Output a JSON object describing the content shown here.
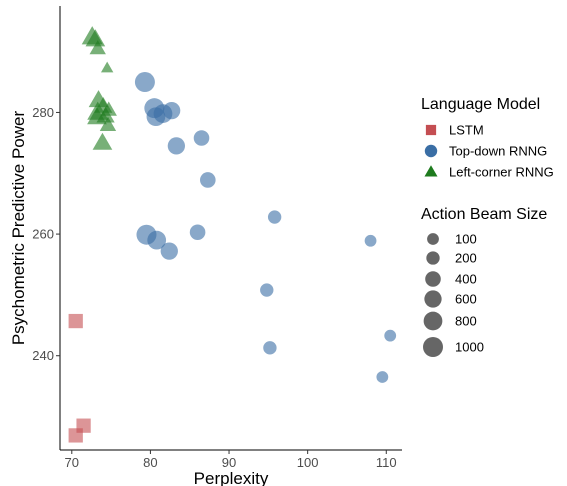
{
  "chart_data": {
    "type": "scatter",
    "xlabel": "Perplexity",
    "ylabel": "Psychometric Predictive Power",
    "xlim": [
      68.5,
      112
    ],
    "ylim": [
      224.5,
      297.5
    ],
    "xticks": [
      70,
      80,
      90,
      100,
      110
    ],
    "yticks": [
      240,
      260,
      280
    ],
    "grid": false,
    "legend_position": "right",
    "color_legend": {
      "title": "Language Model",
      "entries": [
        {
          "name": "LSTM",
          "shape": "square",
          "color": "#c44e52"
        },
        {
          "name": "Top-down RNNG",
          "shape": "circle",
          "color": "#3a6ea5"
        },
        {
          "name": "Left-corner RNNG",
          "shape": "triangle",
          "color": "#1e7b1e"
        }
      ]
    },
    "size_legend": {
      "title": "Action Beam Size",
      "entries": [
        100,
        200,
        400,
        600,
        800,
        1000
      ]
    },
    "series": [
      {
        "name": "LSTM",
        "points": [
          {
            "x": 70.5,
            "y": 245.7,
            "size": 600
          },
          {
            "x": 71.5,
            "y": 228.5,
            "size": 600
          },
          {
            "x": 70.5,
            "y": 226.9,
            "size": 600
          }
        ]
      },
      {
        "name": "Top-down RNNG",
        "points": [
          {
            "x": 79.3,
            "y": 285.0,
            "size": 1000
          },
          {
            "x": 80.5,
            "y": 280.7,
            "size": 1000
          },
          {
            "x": 80.7,
            "y": 279.3,
            "size": 800
          },
          {
            "x": 81.6,
            "y": 279.8,
            "size": 800
          },
          {
            "x": 82.7,
            "y": 280.3,
            "size": 600
          },
          {
            "x": 83.3,
            "y": 274.5,
            "size": 600
          },
          {
            "x": 86.5,
            "y": 275.8,
            "size": 400
          },
          {
            "x": 87.3,
            "y": 268.9,
            "size": 400
          },
          {
            "x": 79.5,
            "y": 259.9,
            "size": 1000
          },
          {
            "x": 80.8,
            "y": 259.0,
            "size": 800
          },
          {
            "x": 82.4,
            "y": 257.2,
            "size": 600
          },
          {
            "x": 86.0,
            "y": 260.3,
            "size": 400
          },
          {
            "x": 95.8,
            "y": 262.8,
            "size": 200
          },
          {
            "x": 108.0,
            "y": 258.9,
            "size": 100
          },
          {
            "x": 94.8,
            "y": 250.8,
            "size": 200
          },
          {
            "x": 95.2,
            "y": 241.3,
            "size": 200
          },
          {
            "x": 110.5,
            "y": 243.3,
            "size": 100
          },
          {
            "x": 109.5,
            "y": 236.5,
            "size": 100
          }
        ]
      },
      {
        "name": "Left-corner RNNG",
        "points": [
          {
            "x": 72.6,
            "y": 292.4,
            "size": 1000
          },
          {
            "x": 73.0,
            "y": 292.0,
            "size": 800
          },
          {
            "x": 73.3,
            "y": 290.5,
            "size": 400
          },
          {
            "x": 74.5,
            "y": 287.3,
            "size": 100
          },
          {
            "x": 73.4,
            "y": 282.0,
            "size": 800
          },
          {
            "x": 74.0,
            "y": 281.0,
            "size": 600
          },
          {
            "x": 74.7,
            "y": 280.4,
            "size": 400
          },
          {
            "x": 73.3,
            "y": 280.0,
            "size": 1000
          },
          {
            "x": 73.2,
            "y": 279.2,
            "size": 800
          },
          {
            "x": 74.3,
            "y": 279.4,
            "size": 600
          },
          {
            "x": 74.6,
            "y": 277.9,
            "size": 400
          },
          {
            "x": 73.9,
            "y": 275.0,
            "size": 800
          }
        ]
      }
    ]
  }
}
